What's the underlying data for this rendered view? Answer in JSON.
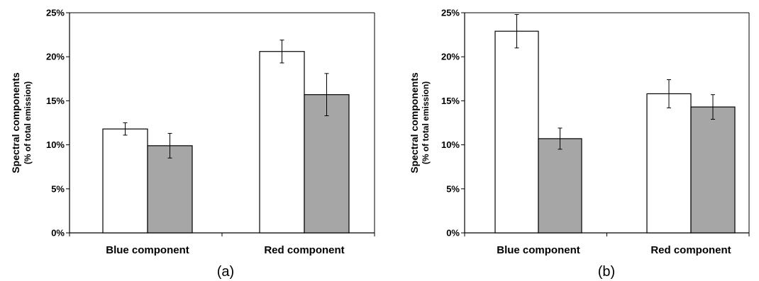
{
  "chart_data": [
    {
      "type": "bar",
      "panel_label": "(a)",
      "ylabel": "Spectral components",
      "ylabel_sub": "(% of total emission)",
      "categories": [
        "Blue component",
        "Red component"
      ],
      "ylim": [
        0,
        25
      ],
      "yticks": [
        "0%",
        "5%",
        "10%",
        "15%",
        "20%",
        "25%"
      ],
      "bar_colors": [
        "#ffffff",
        "#a6a6a6"
      ],
      "series": [
        {
          "values": [
            11.8,
            20.6
          ],
          "errors": [
            0.7,
            1.3
          ]
        },
        {
          "values": [
            9.9,
            15.7
          ],
          "errors": [
            1.4,
            2.4
          ]
        }
      ]
    },
    {
      "type": "bar",
      "panel_label": "(b)",
      "ylabel": "Spectral components",
      "ylabel_sub": "(% of total emission)",
      "categories": [
        "Blue component",
        "Red component"
      ],
      "ylim": [
        0,
        25
      ],
      "yticks": [
        "0%",
        "5%",
        "10%",
        "15%",
        "20%",
        "25%"
      ],
      "bar_colors": [
        "#ffffff",
        "#a6a6a6"
      ],
      "series": [
        {
          "values": [
            22.9,
            15.8
          ],
          "errors": [
            1.9,
            1.6
          ]
        },
        {
          "values": [
            10.7,
            14.3
          ],
          "errors": [
            1.2,
            1.4
          ]
        }
      ]
    }
  ]
}
